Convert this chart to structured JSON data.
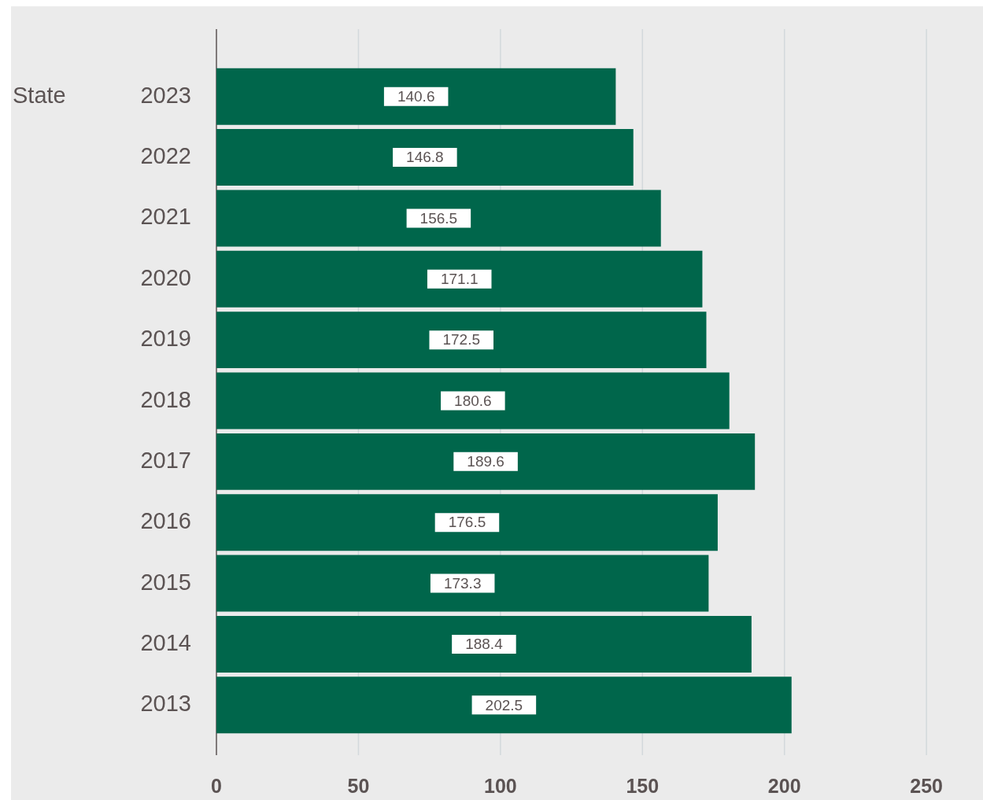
{
  "chart_data": {
    "type": "bar",
    "orientation": "horizontal",
    "ylabel": "State",
    "categories": [
      "2023",
      "2022",
      "2021",
      "2020",
      "2019",
      "2018",
      "2017",
      "2016",
      "2015",
      "2014",
      "2013"
    ],
    "values": [
      140.6,
      146.8,
      156.5,
      171.1,
      172.5,
      180.6,
      189.6,
      176.5,
      173.3,
      188.4,
      202.5
    ],
    "color": "#00664b",
    "xlim": [
      0,
      250
    ],
    "xticks": [
      0,
      50,
      100,
      150,
      200,
      250
    ],
    "grid": "x",
    "data_labels": true
  }
}
